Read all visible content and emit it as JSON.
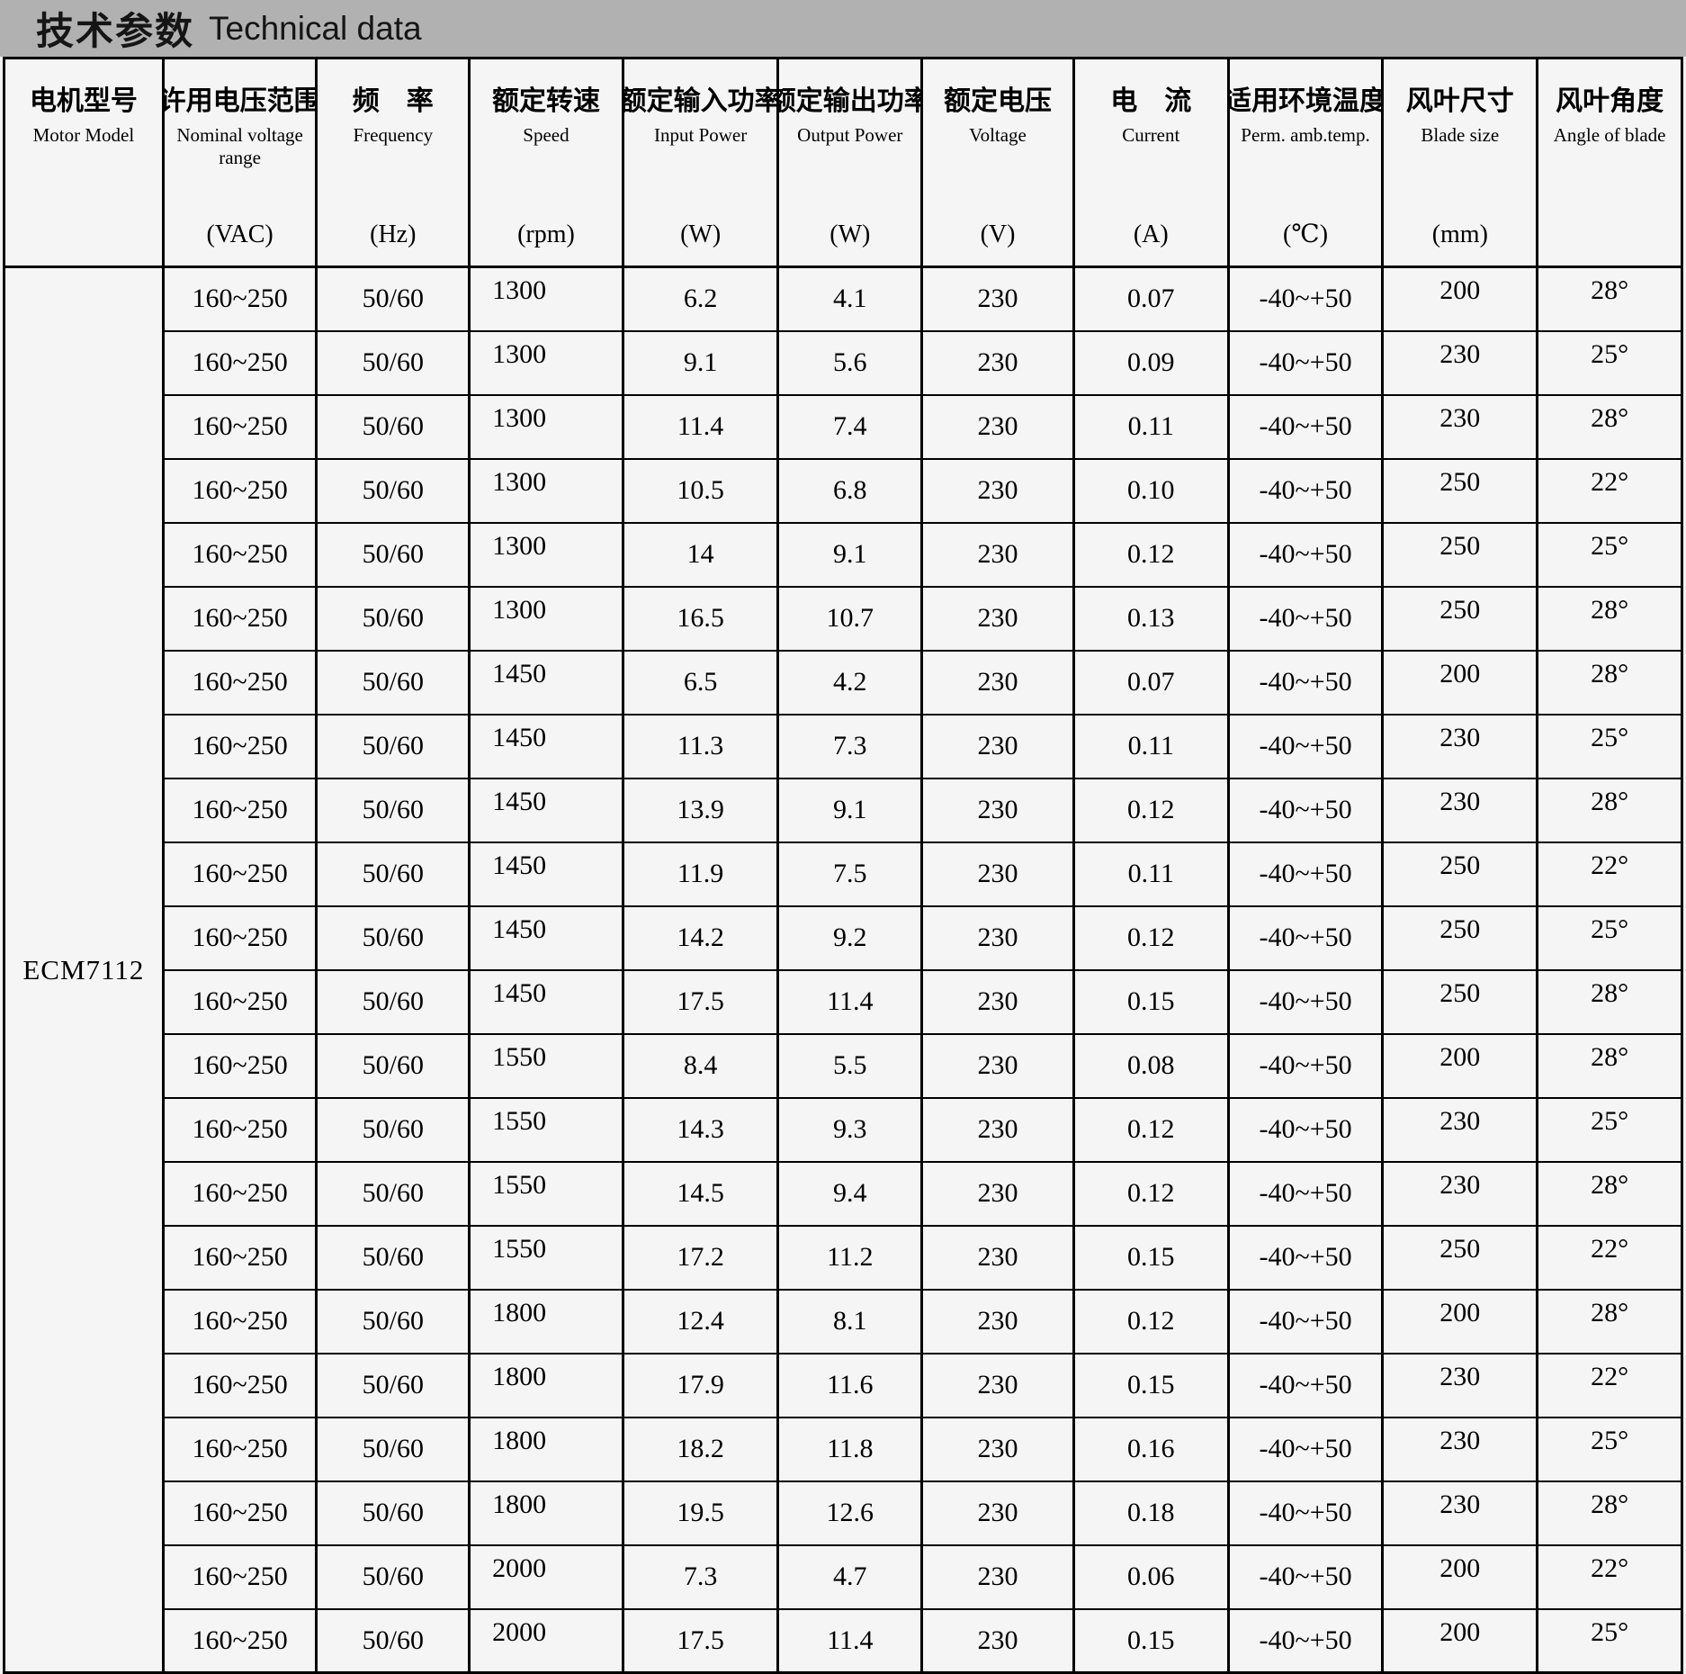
{
  "title": {
    "zh": "技术参数",
    "en": "Technical data"
  },
  "table": {
    "motor_model": "ECM7112",
    "columns": [
      {
        "zh": "电机型号",
        "en": "Motor Model",
        "unit": ""
      },
      {
        "zh": "许用电压范围",
        "en": "Nominal voltage range",
        "unit": "(VAC)"
      },
      {
        "zh": "频　率",
        "en": "Frequency",
        "unit": "(Hz)"
      },
      {
        "zh": "额定转速",
        "en": "Speed",
        "unit": "(rpm)"
      },
      {
        "zh": "额定输入功率",
        "en": "Input Power",
        "unit": "(W)"
      },
      {
        "zh": "额定输出功率",
        "en": "Output Power",
        "unit": "(W)"
      },
      {
        "zh": "额定电压",
        "en": "Voltage",
        "unit": "(V)"
      },
      {
        "zh": "电　流",
        "en": "Current",
        "unit": "(A)"
      },
      {
        "zh": "适用环境温度",
        "en": "Perm. amb.temp.",
        "unit": "(℃)"
      },
      {
        "zh": "风叶尺寸",
        "en": "Blade size",
        "unit": "(mm)"
      },
      {
        "zh": "风叶角度",
        "en": "Angle of blade",
        "unit": ""
      }
    ],
    "rows": [
      [
        "160~250",
        "50/60",
        "1300",
        "6.2",
        "4.1",
        "230",
        "0.07",
        "-40~+50",
        "200",
        "28°"
      ],
      [
        "160~250",
        "50/60",
        "1300",
        "9.1",
        "5.6",
        "230",
        "0.09",
        "-40~+50",
        "230",
        "25°"
      ],
      [
        "160~250",
        "50/60",
        "1300",
        "11.4",
        "7.4",
        "230",
        "0.11",
        "-40~+50",
        "230",
        "28°"
      ],
      [
        "160~250",
        "50/60",
        "1300",
        "10.5",
        "6.8",
        "230",
        "0.10",
        "-40~+50",
        "250",
        "22°"
      ],
      [
        "160~250",
        "50/60",
        "1300",
        "14",
        "9.1",
        "230",
        "0.12",
        "-40~+50",
        "250",
        "25°"
      ],
      [
        "160~250",
        "50/60",
        "1300",
        "16.5",
        "10.7",
        "230",
        "0.13",
        "-40~+50",
        "250",
        "28°"
      ],
      [
        "160~250",
        "50/60",
        "1450",
        "6.5",
        "4.2",
        "230",
        "0.07",
        "-40~+50",
        "200",
        "28°"
      ],
      [
        "160~250",
        "50/60",
        "1450",
        "11.3",
        "7.3",
        "230",
        "0.11",
        "-40~+50",
        "230",
        "25°"
      ],
      [
        "160~250",
        "50/60",
        "1450",
        "13.9",
        "9.1",
        "230",
        "0.12",
        "-40~+50",
        "230",
        "28°"
      ],
      [
        "160~250",
        "50/60",
        "1450",
        "11.9",
        "7.5",
        "230",
        "0.11",
        "-40~+50",
        "250",
        "22°"
      ],
      [
        "160~250",
        "50/60",
        "1450",
        "14.2",
        "9.2",
        "230",
        "0.12",
        "-40~+50",
        "250",
        "25°"
      ],
      [
        "160~250",
        "50/60",
        "1450",
        "17.5",
        "11.4",
        "230",
        "0.15",
        "-40~+50",
        "250",
        "28°"
      ],
      [
        "160~250",
        "50/60",
        "1550",
        "8.4",
        "5.5",
        "230",
        "0.08",
        "-40~+50",
        "200",
        "28°"
      ],
      [
        "160~250",
        "50/60",
        "1550",
        "14.3",
        "9.3",
        "230",
        "0.12",
        "-40~+50",
        "230",
        "25°"
      ],
      [
        "160~250",
        "50/60",
        "1550",
        "14.5",
        "9.4",
        "230",
        "0.12",
        "-40~+50",
        "230",
        "28°"
      ],
      [
        "160~250",
        "50/60",
        "1550",
        "17.2",
        "11.2",
        "230",
        "0.15",
        "-40~+50",
        "250",
        "22°"
      ],
      [
        "160~250",
        "50/60",
        "1800",
        "12.4",
        "8.1",
        "230",
        "0.12",
        "-40~+50",
        "200",
        "28°"
      ],
      [
        "160~250",
        "50/60",
        "1800",
        "17.9",
        "11.6",
        "230",
        "0.15",
        "-40~+50",
        "230",
        "22°"
      ],
      [
        "160~250",
        "50/60",
        "1800",
        "18.2",
        "11.8",
        "230",
        "0.16",
        "-40~+50",
        "230",
        "25°"
      ],
      [
        "160~250",
        "50/60",
        "1800",
        "19.5",
        "12.6",
        "230",
        "0.18",
        "-40~+50",
        "230",
        "28°"
      ],
      [
        "160~250",
        "50/60",
        "2000",
        "7.3",
        "4.7",
        "230",
        "0.06",
        "-40~+50",
        "200",
        "22°"
      ],
      [
        "160~250",
        "50/60",
        "2000",
        "17.5",
        "11.4",
        "230",
        "0.15",
        "-40~+50",
        "200",
        "25°"
      ]
    ]
  }
}
